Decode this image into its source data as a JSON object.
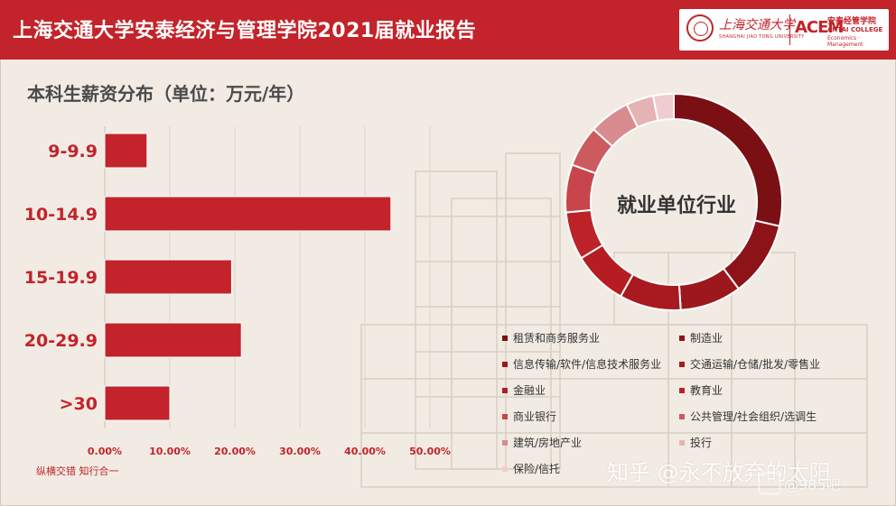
{
  "header": {
    "title": "上海交通大学安泰经济与管理学院2021届就业报告",
    "logo": {
      "university_name": "上海交通大学",
      "university_sub": "SHANGHAI JIAO TONG UNIVERSITY",
      "school_mark": "ACEM",
      "school_name_cn": "安泰经管学院",
      "school_name_en1": "ANTAI COLLEGE",
      "school_name_en2": "Economics · Management"
    }
  },
  "section_title": "本科生薪资分布（单位：万元/年）",
  "footnote": "纵横交错 知行合一",
  "watermarks": {
    "zhihu": "知乎 @永不放弃的太阳",
    "site": "@985吧"
  },
  "donut_center_label": "就业单位行业",
  "colors": {
    "brand_red": "#c3232a",
    "background": "#f1ebe3"
  },
  "chart_data": [
    {
      "type": "bar",
      "orientation": "horizontal",
      "categories": [
        "9-9.9",
        "10-14.9",
        "15-19.9",
        "20-29.9",
        ">30"
      ],
      "values": [
        0.065,
        0.44,
        0.195,
        0.21,
        0.1
      ],
      "xlim": [
        0,
        0.5
      ],
      "x_ticks": [
        "0.00%",
        "10.00%",
        "20.00%",
        "30.00%",
        "40.00%",
        "50.00%"
      ],
      "grid": true,
      "color": "#c3232a"
    },
    {
      "type": "pie",
      "style": "donut",
      "categories": [
        "租赁和商务服务业",
        "制造业",
        "信息传输/软件/信息技术服务业",
        "交通运输/仓储/批发/零售业",
        "金融业",
        "教育业",
        "商业银行",
        "公共管理/社会组织/选调生",
        "建筑/房地产业",
        "投行",
        "保险/信托"
      ],
      "values": [
        28,
        11,
        9,
        9,
        8,
        7,
        7,
        6,
        6,
        4,
        3
      ],
      "colors": [
        "#7b1014",
        "#8c1418",
        "#9c181c",
        "#a81a1f",
        "#b51d22",
        "#bd2228",
        "#c8464b",
        "#cd5a5f",
        "#d98c8f",
        "#e6b3b5",
        "#efcdce"
      ],
      "legend_position": "bottom"
    }
  ]
}
